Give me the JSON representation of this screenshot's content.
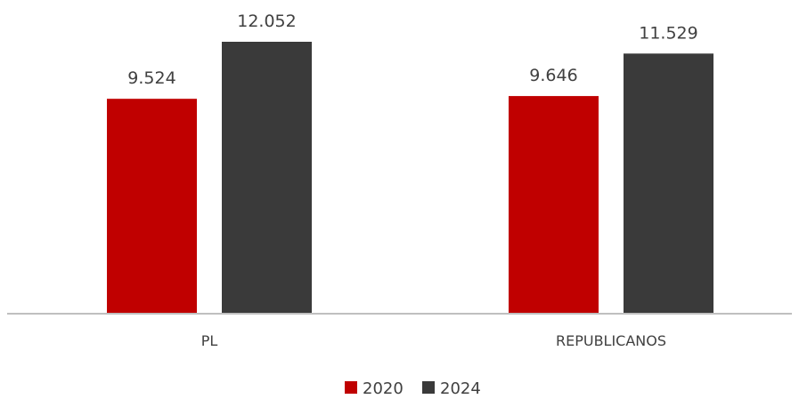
{
  "chart_data": {
    "type": "bar",
    "categories": [
      "PL",
      "REPUBLICANOS"
    ],
    "series": [
      {
        "name": "2020",
        "values": [
          9524,
          9646
        ],
        "labels": [
          "9.524",
          "9.646"
        ],
        "color": "#c00000"
      },
      {
        "name": "2024",
        "values": [
          12052,
          11529
        ],
        "labels": [
          "12.052",
          "11.529"
        ],
        "color": "#3a3a3a"
      }
    ],
    "title": "",
    "xlabel": "",
    "ylabel": "",
    "ylim": [
      0,
      12052
    ],
    "grid": false,
    "axis_color": "#bfbfbf",
    "legend_position": "bottom"
  }
}
